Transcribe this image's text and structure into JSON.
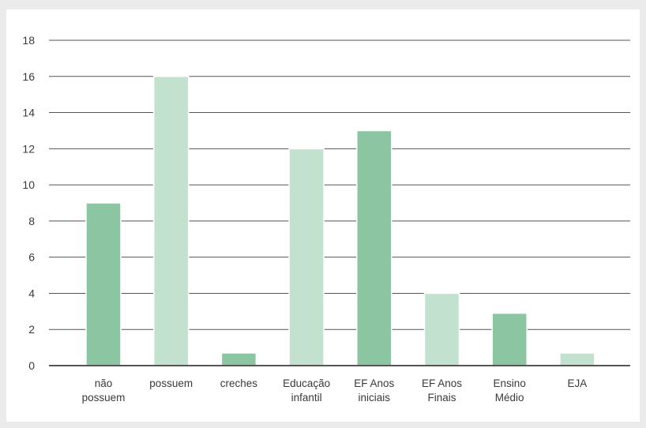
{
  "chart_data": {
    "type": "bar",
    "categories": [
      [
        "não",
        "possuem"
      ],
      [
        "possuem"
      ],
      [
        "creches"
      ],
      [
        "Educação",
        "infantil"
      ],
      [
        "EF Anos",
        "iniciais"
      ],
      [
        "EF Anos",
        "Finais"
      ],
      [
        "Ensino",
        "Médio"
      ],
      [
        "EJA"
      ]
    ],
    "values": [
      9,
      16,
      0.7,
      12,
      13,
      4,
      2.9,
      0.7
    ],
    "bar_colors": [
      "#8cc5a1",
      "#c2e2cf",
      "#8cc5a1",
      "#c2e2cf",
      "#8cc5a1",
      "#c2e2cf",
      "#8cc5a1",
      "#c2e2cf"
    ],
    "ylim": [
      0,
      18
    ],
    "yticks": [
      "0",
      "2",
      "4",
      "6",
      "8",
      "10",
      "12",
      "14",
      "16",
      "18"
    ],
    "title": "",
    "xlabel": "",
    "ylabel": "",
    "grid": true,
    "legend": "none"
  },
  "colors": {
    "background": "#ebebeb",
    "panel": "#ffffff",
    "grid": "#555555",
    "axis": "#555555",
    "bar_dark": "#8cc5a1",
    "bar_light": "#c2e2cf"
  }
}
